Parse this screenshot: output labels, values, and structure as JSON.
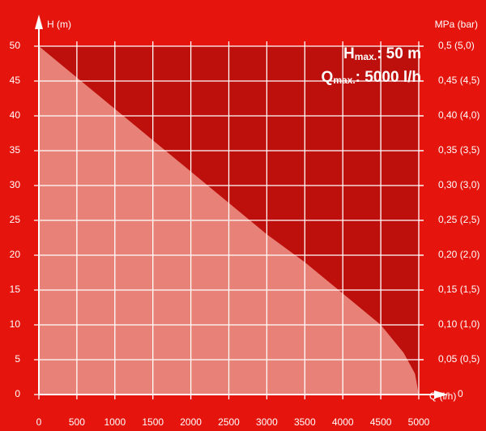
{
  "chart_data": {
    "type": "area",
    "y_label": "H (m)",
    "y2_label": "MPa (bar)",
    "x_label": "Q (l/h)",
    "annotations": [
      {
        "main": "H",
        "sub": "max.",
        "rest": ": 50 m"
      },
      {
        "main": "Q",
        "sub": "max.",
        "rest": ": 5000 l/h"
      }
    ],
    "x": [
      0,
      500,
      1000,
      1500,
      2000,
      2500,
      3000,
      3500,
      4000,
      4500,
      4800,
      4950,
      5000
    ],
    "series": [
      {
        "color": "#f0968c",
        "values": [
          50,
          45.5,
          41,
          36.5,
          32,
          27.5,
          23,
          19,
          14.5,
          10,
          6,
          3,
          0
        ]
      }
    ],
    "xlim": [
      0,
      5000
    ],
    "xticks": [
      0,
      500,
      1000,
      1500,
      2000,
      2500,
      3000,
      3500,
      4000,
      4500,
      5000
    ],
    "ylim": [
      0,
      50
    ],
    "yticks": [
      0,
      5,
      10,
      15,
      20,
      25,
      30,
      35,
      40,
      45,
      50
    ],
    "y2lim": [
      0,
      0.5
    ],
    "y2ticks": [
      {
        "value": 0,
        "label": "0"
      },
      {
        "value": 0.05,
        "label": "0,05 (0,5)"
      },
      {
        "value": 0.1,
        "label": "0,10 (1,0)"
      },
      {
        "value": 0.15,
        "label": "0,15 (1,5)"
      },
      {
        "value": 0.2,
        "label": "0,20 (2,0)"
      },
      {
        "value": 0.25,
        "label": "0,25 (2,5)"
      },
      {
        "value": 0.3,
        "label": "0,30 (3,0)"
      },
      {
        "value": 0.35,
        "label": "0,35 (3,5)"
      },
      {
        "value": 0.4,
        "label": "0,40 (4,0)"
      },
      {
        "value": 0.45,
        "label": "0,45 (4,5)"
      },
      {
        "value": 0.5,
        "label": "0,5 (5,0)"
      }
    ],
    "grid": true,
    "background": "#e5140c",
    "plot_background": "#bd0f0b"
  }
}
